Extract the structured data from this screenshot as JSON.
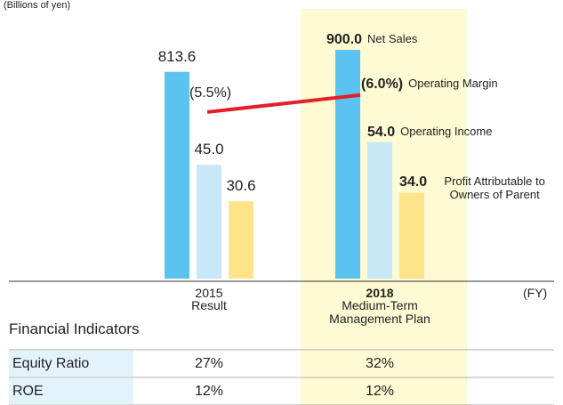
{
  "chart_data": {
    "type": "bar",
    "unit_label": "(Billions of yen)",
    "x_unit": "(FY)",
    "categories": [
      "2015",
      "2018"
    ],
    "category_subtitles": [
      "Result",
      "Medium-Term Management Plan"
    ],
    "series": [
      {
        "name": "Net Sales",
        "color": "#5bc3f0",
        "values": [
          813.6,
          900.0
        ],
        "value_labels": [
          "813.6",
          "900.0"
        ]
      },
      {
        "name": "Operating Income",
        "color": "#c8e8f8",
        "values": [
          45.0,
          54.0
        ],
        "value_labels": [
          "45.0",
          "54.0"
        ]
      },
      {
        "name": "Profit Attributable to Owners of Parent",
        "color": "#fde38a",
        "values": [
          30.6,
          34.0
        ],
        "value_labels": [
          "30.6",
          "34.0"
        ]
      },
      {
        "name": "Operating Margin",
        "type": "line",
        "color": "#e3202a",
        "values": [
          5.5,
          6.0
        ],
        "value_labels": [
          "(5.5%)",
          "(6.0%)"
        ]
      }
    ],
    "highlight_color": "#fdfbd3"
  },
  "table": {
    "title": "Financial Indicators",
    "rows": [
      [
        "Equity Ratio",
        "27%",
        "32%"
      ],
      [
        "ROE",
        "12%",
        "12%"
      ]
    ]
  }
}
